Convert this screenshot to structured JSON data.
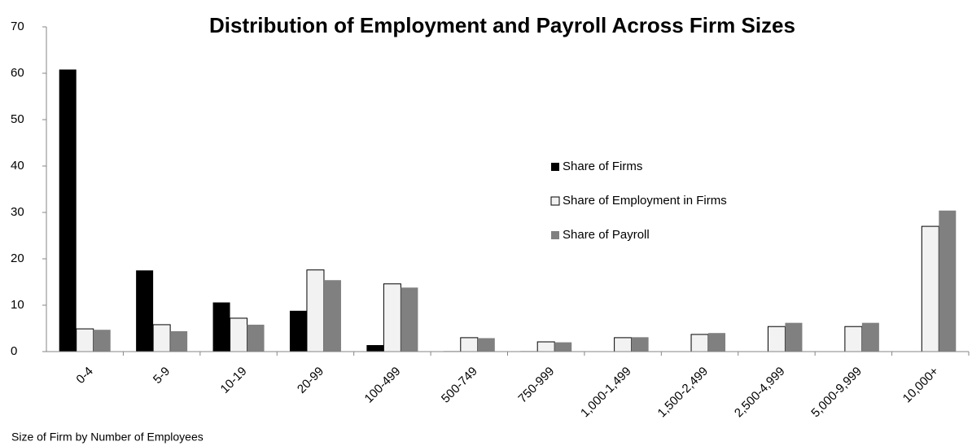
{
  "chart_data": {
    "type": "bar",
    "title": "Distribution of Employment and Payroll Across Firm Sizes",
    "x_label": "Size of Firm by Number of Employees",
    "categories": [
      "0-4",
      "5-9",
      "10-19",
      "20-99",
      "100-499",
      "500-749",
      "750-999",
      "1,000-1,499",
      "1,500-2,499",
      "2,500-4,999",
      "5,000-9,999",
      "10,000+"
    ],
    "series": [
      {
        "name": "Share of Firms",
        "color": "#000000",
        "values": [
          60.8,
          17.5,
          10.6,
          8.8,
          1.4,
          0.1,
          0.1,
          0,
          0,
          0,
          0,
          0
        ]
      },
      {
        "name": "Share of Employment in Firms",
        "color": "#f2f2f2",
        "edgecolor": "#000000",
        "values": [
          4.9,
          5.8,
          7.2,
          17.6,
          14.6,
          3.0,
          2.1,
          3.0,
          3.7,
          5.4,
          5.4,
          27.0
        ]
      },
      {
        "name": "Share of Payroll",
        "color": "#808080",
        "values": [
          4.7,
          4.4,
          5.8,
          15.4,
          13.8,
          2.9,
          2.0,
          3.1,
          4.0,
          6.2,
          6.2,
          30.4
        ]
      }
    ],
    "ylim": [
      0,
      70
    ],
    "yticks": [
      0,
      10,
      20,
      30,
      40,
      50,
      60,
      70
    ],
    "grid": false
  }
}
